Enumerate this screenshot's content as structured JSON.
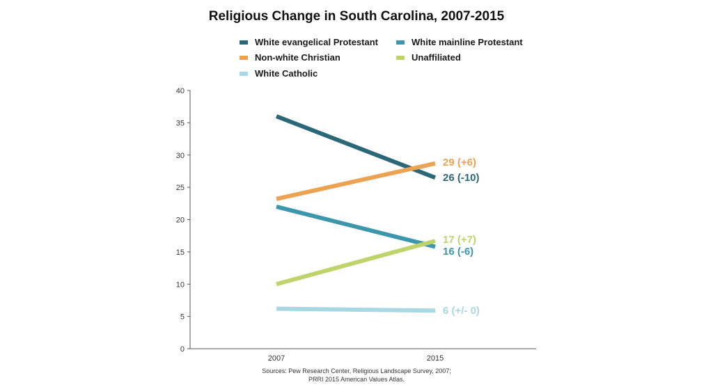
{
  "chart_data": {
    "type": "line",
    "title": "Religious Change in South Carolina, 2007-2015",
    "x": [
      "2007",
      "2015"
    ],
    "ylim": [
      0,
      40
    ],
    "yticks": [
      0,
      5,
      10,
      15,
      20,
      25,
      30,
      35,
      40
    ],
    "grid": false,
    "legend_position": "top",
    "series": [
      {
        "name": "White evangelical Protestant",
        "values": [
          36,
          26.5
        ],
        "color": "#2b6877",
        "end_label": "26 (-10)"
      },
      {
        "name": "White mainline Protestant",
        "values": [
          22,
          15.8
        ],
        "color": "#3c97ad",
        "end_label": "16 (-6)"
      },
      {
        "name": "Non-white Christian",
        "values": [
          23.2,
          28.7
        ],
        "color": "#eba353",
        "end_label": "29 (+6)"
      },
      {
        "name": "Unaffiliated",
        "values": [
          10,
          16.7
        ],
        "color": "#bed36a",
        "end_label": "17 (+7)"
      },
      {
        "name": "White Catholic",
        "values": [
          6.2,
          5.9
        ],
        "color": "#a8d8e4",
        "end_label": "6 (+/- 0)"
      }
    ],
    "source": [
      "Sources: Pew Research Center, Religious Landscape Survey, 2007;",
      "PRRI 2015 American Values Atlas."
    ]
  }
}
